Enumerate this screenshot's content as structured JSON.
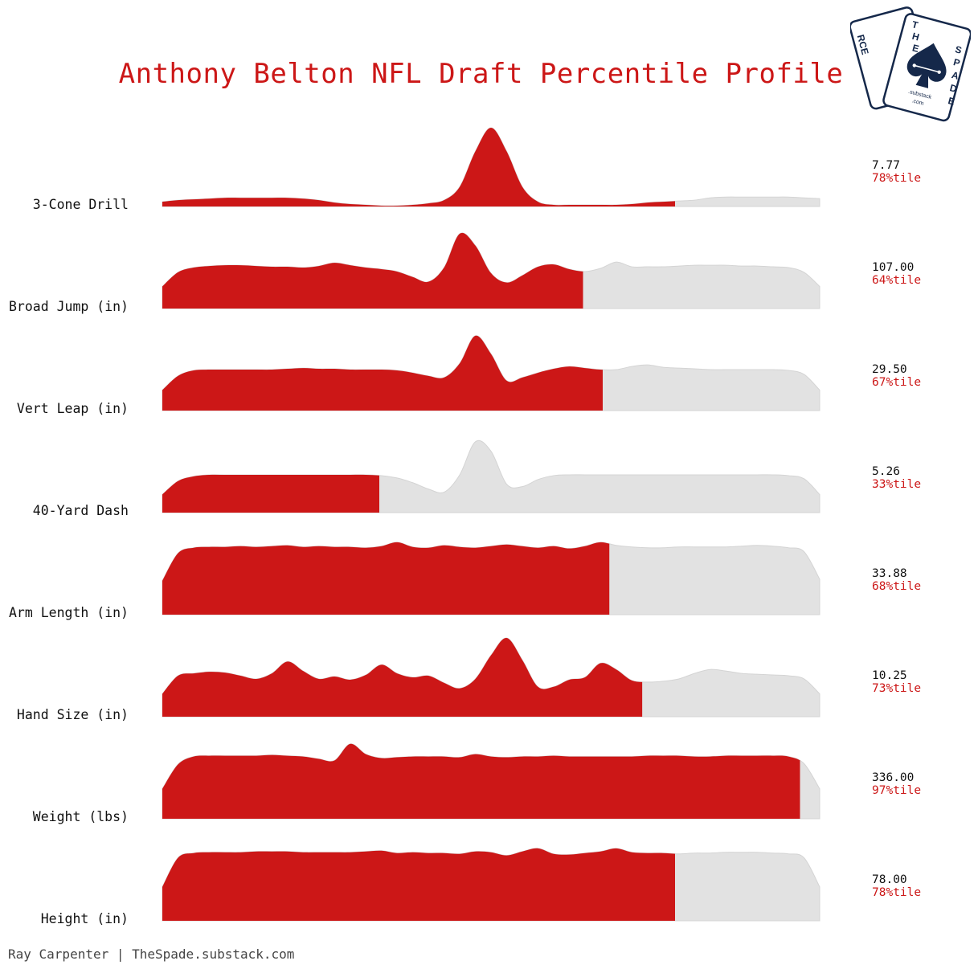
{
  "title": "Anthony Belton NFL Draft Percentile Profile",
  "footer": "Ray Carpenter | TheSpade.substack.com",
  "logo": {
    "card_back_letters": "RCE",
    "card_front_letters": "THE SPADE",
    "substack_text": ".substack",
    "com_text": ".com"
  },
  "colors": {
    "highlight": "#cc1717",
    "background_distribution": "#e2e2e2",
    "logo_navy": "#15284a"
  },
  "chart_data": [
    {
      "type": "area",
      "label": "3-Cone Drill",
      "value": "7.77",
      "percentile_label": "78%tile",
      "percentile": 78,
      "density": [
        0.06,
        0.08,
        0.09,
        0.1,
        0.11,
        0.11,
        0.11,
        0.11,
        0.11,
        0.1,
        0.08,
        0.05,
        0.03,
        0.02,
        0.01,
        0.01,
        0.02,
        0.04,
        0.08,
        0.25,
        0.7,
        1.0,
        0.7,
        0.25,
        0.06,
        0.02,
        0.02,
        0.02,
        0.02,
        0.02,
        0.03,
        0.05,
        0.06,
        0.07,
        0.08,
        0.11,
        0.12,
        0.12,
        0.12,
        0.12,
        0.12,
        0.11,
        0.1
      ]
    },
    {
      "type": "area",
      "label": "Broad Jump (in)",
      "value": "107.00",
      "percentile_label": "64%tile",
      "percentile": 64,
      "density": [
        0.28,
        0.46,
        0.52,
        0.54,
        0.55,
        0.55,
        0.54,
        0.53,
        0.53,
        0.52,
        0.54,
        0.58,
        0.55,
        0.52,
        0.5,
        0.47,
        0.4,
        0.34,
        0.52,
        0.95,
        0.8,
        0.45,
        0.33,
        0.42,
        0.53,
        0.56,
        0.5,
        0.47,
        0.51,
        0.59,
        0.53,
        0.53,
        0.53,
        0.54,
        0.55,
        0.55,
        0.55,
        0.54,
        0.54,
        0.53,
        0.52,
        0.46,
        0.28
      ]
    },
    {
      "type": "area",
      "label": "Vert Leap (in)",
      "value": "29.50",
      "percentile_label": "67%tile",
      "percentile": 67,
      "density": [
        0.26,
        0.44,
        0.51,
        0.52,
        0.52,
        0.52,
        0.52,
        0.52,
        0.53,
        0.54,
        0.53,
        0.53,
        0.52,
        0.52,
        0.52,
        0.51,
        0.48,
        0.44,
        0.42,
        0.6,
        0.95,
        0.72,
        0.38,
        0.42,
        0.48,
        0.53,
        0.56,
        0.54,
        0.52,
        0.52,
        0.56,
        0.58,
        0.55,
        0.54,
        0.53,
        0.52,
        0.52,
        0.52,
        0.52,
        0.52,
        0.51,
        0.46,
        0.26
      ]
    },
    {
      "type": "area",
      "label": "40-Yard Dash",
      "value": "5.26",
      "percentile_label": "33%tile",
      "percentile": 33,
      "density": [
        0.23,
        0.4,
        0.46,
        0.48,
        0.48,
        0.48,
        0.48,
        0.48,
        0.48,
        0.48,
        0.48,
        0.48,
        0.48,
        0.48,
        0.47,
        0.44,
        0.38,
        0.3,
        0.26,
        0.48,
        0.9,
        0.78,
        0.36,
        0.33,
        0.42,
        0.47,
        0.48,
        0.48,
        0.48,
        0.48,
        0.48,
        0.48,
        0.48,
        0.48,
        0.48,
        0.48,
        0.48,
        0.48,
        0.48,
        0.48,
        0.47,
        0.43,
        0.23
      ]
    },
    {
      "type": "area",
      "label": "Arm Length (in)",
      "value": "33.88",
      "percentile_label": "68%tile",
      "percentile": 68,
      "density": [
        0.43,
        0.78,
        0.85,
        0.86,
        0.86,
        0.87,
        0.86,
        0.87,
        0.88,
        0.86,
        0.87,
        0.86,
        0.86,
        0.85,
        0.87,
        0.92,
        0.86,
        0.85,
        0.88,
        0.86,
        0.85,
        0.87,
        0.89,
        0.87,
        0.85,
        0.87,
        0.84,
        0.87,
        0.92,
        0.88,
        0.86,
        0.85,
        0.85,
        0.86,
        0.86,
        0.86,
        0.86,
        0.87,
        0.88,
        0.87,
        0.85,
        0.8,
        0.45
      ]
    },
    {
      "type": "area",
      "label": "Hand Size (in)",
      "value": "10.25",
      "percentile_label": "73%tile",
      "percentile": 73,
      "density": [
        0.29,
        0.52,
        0.55,
        0.57,
        0.56,
        0.52,
        0.48,
        0.55,
        0.7,
        0.58,
        0.48,
        0.51,
        0.47,
        0.53,
        0.66,
        0.55,
        0.5,
        0.52,
        0.43,
        0.36,
        0.48,
        0.78,
        1.0,
        0.72,
        0.38,
        0.38,
        0.47,
        0.5,
        0.68,
        0.6,
        0.46,
        0.44,
        0.45,
        0.48,
        0.55,
        0.6,
        0.58,
        0.55,
        0.54,
        0.53,
        0.52,
        0.48,
        0.29
      ]
    },
    {
      "type": "area",
      "label": "Weight (lbs)",
      "value": "336.00",
      "percentile_label": "97%tile",
      "percentile": 97,
      "density": [
        0.38,
        0.69,
        0.79,
        0.8,
        0.8,
        0.8,
        0.8,
        0.81,
        0.8,
        0.79,
        0.76,
        0.74,
        0.95,
        0.82,
        0.77,
        0.78,
        0.79,
        0.79,
        0.79,
        0.78,
        0.82,
        0.79,
        0.78,
        0.79,
        0.79,
        0.8,
        0.79,
        0.79,
        0.79,
        0.79,
        0.79,
        0.8,
        0.8,
        0.8,
        0.79,
        0.79,
        0.8,
        0.8,
        0.8,
        0.8,
        0.79,
        0.7,
        0.38
      ]
    },
    {
      "type": "area",
      "label": "Height (in)",
      "value": "78.00",
      "percentile_label": "78%tile",
      "percentile": 78,
      "density": [
        0.43,
        0.8,
        0.86,
        0.87,
        0.87,
        0.87,
        0.88,
        0.88,
        0.88,
        0.87,
        0.87,
        0.87,
        0.87,
        0.88,
        0.89,
        0.86,
        0.87,
        0.86,
        0.86,
        0.85,
        0.88,
        0.87,
        0.83,
        0.88,
        0.92,
        0.85,
        0.84,
        0.86,
        0.88,
        0.92,
        0.87,
        0.86,
        0.86,
        0.85,
        0.86,
        0.86,
        0.87,
        0.87,
        0.87,
        0.86,
        0.85,
        0.8,
        0.43
      ]
    }
  ]
}
